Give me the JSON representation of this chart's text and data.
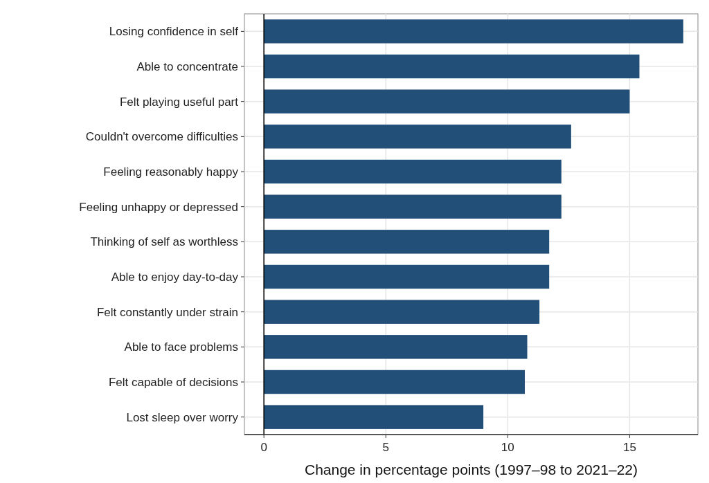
{
  "chart_data": {
    "type": "bar",
    "orientation": "horizontal",
    "xlabel": "Change in percentage points (1997–98 to 2021–22)",
    "categories": [
      "Losing confidence in self",
      "Able to concentrate",
      "Felt playing useful part",
      "Couldn't overcome difficulties",
      "Feeling reasonably happy",
      "Feeling unhappy or depressed",
      "Thinking of self as worthless",
      "Able to enjoy day-to-day",
      "Felt constantly under strain",
      "Able to face problems",
      "Felt capable of decisions",
      "Lost sleep over worry"
    ],
    "values": [
      17.2,
      15.4,
      15.0,
      12.6,
      12.2,
      12.2,
      11.7,
      11.7,
      11.3,
      10.8,
      10.7,
      9.0
    ],
    "color": "#224f77",
    "xlim": [
      -0.8,
      17.8
    ],
    "xticks": [
      0,
      5,
      10,
      15
    ],
    "grid": true,
    "ref_lines": [
      {
        "axis": "x",
        "value": 0,
        "color": "#000000"
      }
    ]
  }
}
